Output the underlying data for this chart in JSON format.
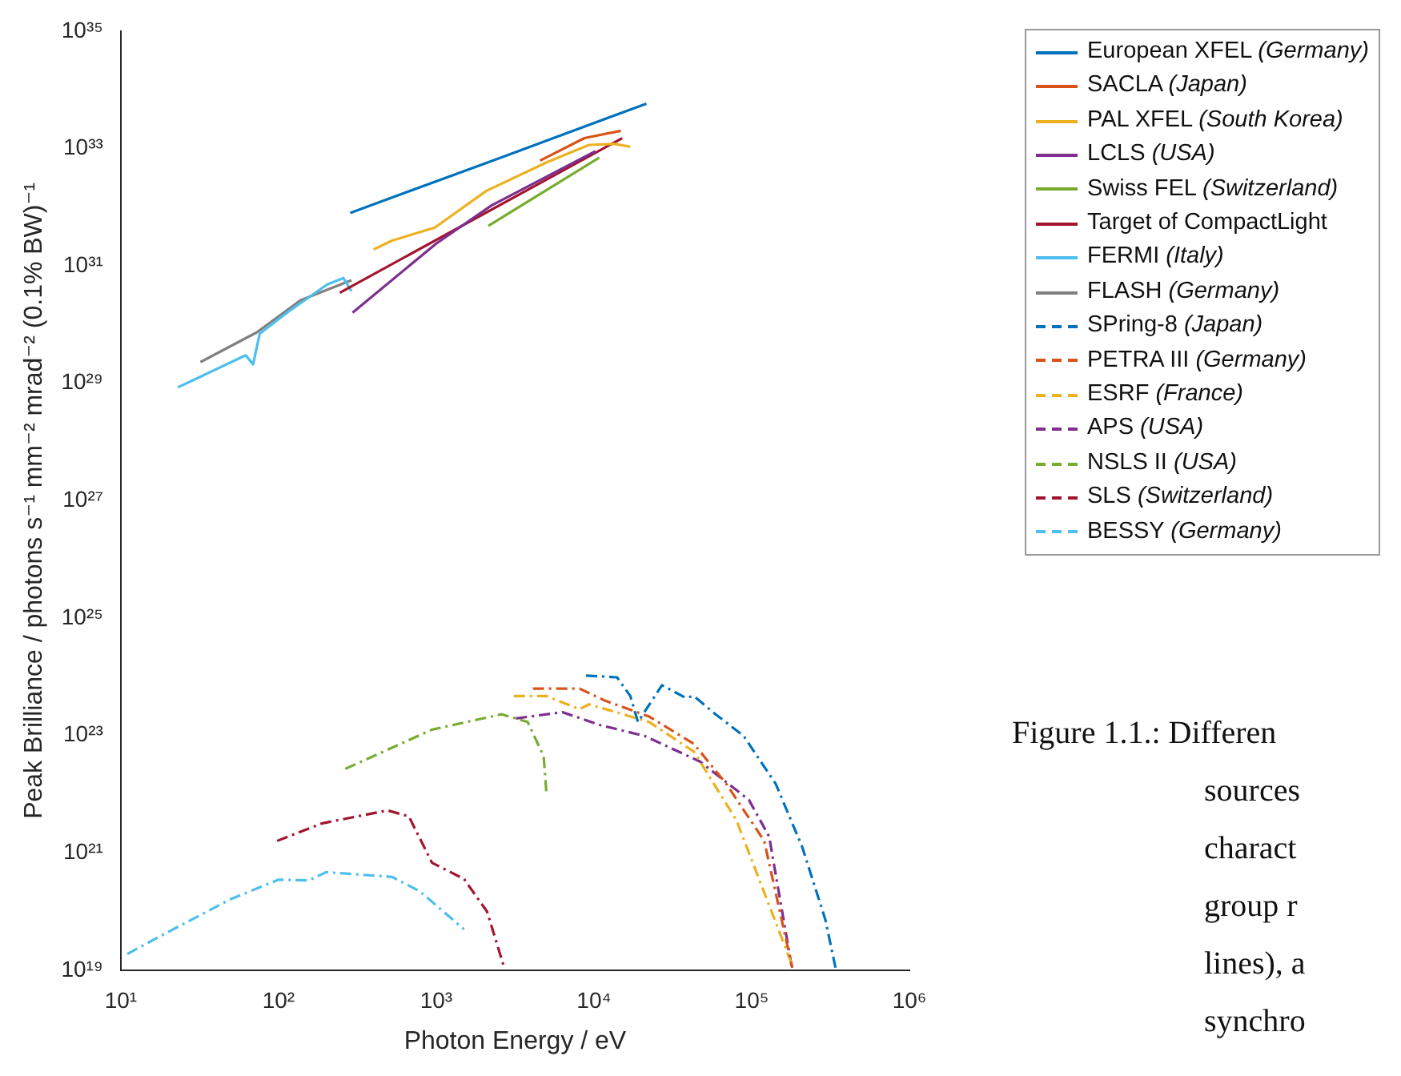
{
  "chart_data": {
    "type": "line",
    "xlabel": "Photon Energy / eV",
    "ylabel": "Peak Brilliance / photons s⁻¹ mm⁻² mrad⁻² (0.1% BW)⁻¹",
    "log": "xy",
    "grid": false,
    "legend": "top right",
    "marker": "none",
    "xlim": [
      10,
      1000000
    ],
    "xticks": [
      {
        "value": 10,
        "label": "10¹"
      },
      {
        "value": 100,
        "label": "10²"
      },
      {
        "value": 1000,
        "label": "10³"
      },
      {
        "value": 10000,
        "label": "10⁴"
      },
      {
        "value": 100000,
        "label": "10⁵"
      },
      {
        "value": 1000000,
        "label": "10⁶"
      }
    ],
    "ylim": [
      1e+19,
      1e+35
    ],
    "yticks": [
      {
        "value": 1e+19,
        "label": "10¹⁹"
      },
      {
        "value": 1e+21,
        "label": "10²¹"
      },
      {
        "value": 1e+23,
        "label": "10²³"
      },
      {
        "value": 1e+25,
        "label": "10²⁵"
      },
      {
        "value": 1e+27,
        "label": "10²⁷"
      },
      {
        "value": 1e+29,
        "label": "10²⁹"
      },
      {
        "value": 1e+31,
        "label": "10³¹"
      },
      {
        "value": 1e+33,
        "label": "10³³"
      },
      {
        "value": 1e+35,
        "label": "10³⁵"
      }
    ],
    "series": [
      {
        "name": "European XFEL (Germany)",
        "color": "#0072bd",
        "line_style": "solid",
        "x": [
          285,
          2500,
          21500
        ],
        "values": [
          8e+31,
          6.8e+32,
          5.8e+33
        ]
      },
      {
        "name": "SACLA (Japan)",
        "color": "#d95319",
        "line_style": "solid",
        "x": [
          4550,
          8700,
          14800
        ],
        "values": [
          6.2e+32,
          1.5e+33,
          2e+33
        ]
      },
      {
        "name": "PAL XFEL (South Korea)",
        "color": "#edb120",
        "line_style": "solid",
        "x": [
          400,
          525,
          980,
          2080,
          5020,
          9300,
          13400,
          17000
        ],
        "values": [
          1.9e+31,
          2.7e+31,
          4.5e+31,
          1.9e+32,
          5.8e+32,
          1.15e+33,
          1.2e+33,
          1.07e+33
        ]
      },
      {
        "name": "LCLS (USA)",
        "color": "#7e2f8e",
        "line_style": "solid",
        "x": [
          295,
          1000,
          2240,
          10200
        ],
        "values": [
          1.6e+30,
          2.4e+31,
          1.07e+32,
          9e+32
        ]
      },
      {
        "name": "Swiss FEL (Switzerland)",
        "color": "#77ac30",
        "line_style": "solid",
        "x": [
          2140,
          10800
        ],
        "values": [
          4.8e+31,
          7e+32
        ]
      },
      {
        "name": "Target of CompactLight",
        "color": "#a2142f",
        "line_style": "solid",
        "x": [
          245,
          15100
        ],
        "values": [
          3.5e+30,
          1.5e+33
        ]
      },
      {
        "name": "FERMI (Italy)",
        "color": "#4dbeee",
        "line_style": "solid",
        "x": [
          23,
          62,
          69,
          76,
          117,
          203,
          258,
          290
        ],
        "values": [
          8.5e+28,
          3e+29,
          2.1e+29,
          7e+29,
          1.7e+30,
          4.8e+30,
          6.2e+30,
          3.7e+30
        ]
      },
      {
        "name": "FLASH (Germany)",
        "color": "#808080",
        "line_style": "solid",
        "x": [
          32,
          73,
          138,
          290
        ],
        "values": [
          2.3e+29,
          7.4e+29,
          2.6e+30,
          5.7e+30
        ]
      },
      {
        "name": "SPring-8 (Japan)",
        "color": "#0072bd",
        "line_style": "dashed",
        "x": [
          8900,
          14000,
          17000,
          19000,
          27000,
          38000,
          43000,
          59000,
          89000,
          142000,
          209000,
          293000,
          340000
        ],
        "values": [
          1.05e+24,
          9.8e+23,
          4.7e+23,
          1.7e+23,
          7.2e+23,
          4.4e+23,
          4.7e+23,
          2.3e+23,
          9.8e+22,
          1.5e+22,
          1.26e+21,
          7.3e+19,
          1.1e+19
        ]
      },
      {
        "name": "PETRA III (Germany)",
        "color": "#d95319",
        "line_style": "dashed",
        "x": [
          4100,
          8100,
          11800,
          22400,
          43000,
          69000,
          120000,
          181000
        ],
        "values": [
          6.3e+23,
          6.3e+23,
          3.9e+23,
          2.1e+23,
          7.2e+22,
          1.5e+22,
          1.6e+21,
          1.1e+19
        ]
      },
      {
        "name": "ESRF (France)",
        "color": "#edb120",
        "line_style": "dashed",
        "x": [
          3100,
          5000,
          8100,
          9300,
          22400,
          43000,
          80000,
          181000
        ],
        "values": [
          4.7e+23,
          4.7e+23,
          2.8e+23,
          3.4e+23,
          1.7e+23,
          5.3e+22,
          3.6e+21,
          1.2e+19
        ]
      },
      {
        "name": "APS (USA)",
        "color": "#7e2f8e",
        "line_style": "dashed",
        "x": [
          3200,
          6300,
          11000,
          21000,
          47000,
          96000,
          129000,
          181000
        ],
        "values": [
          1.95e+23,
          2.5e+23,
          1.5e+23,
          9.8e+22,
          3.6e+22,
          8e+21,
          1.9e+21,
          1e+19
        ]
      },
      {
        "name": "NSLS II (USA)",
        "color": "#77ac30",
        "line_style": "dashed",
        "x": [
          265,
          940,
          2600,
          3800,
          4800,
          5000
        ],
        "values": [
          2.7e+22,
          1.26e+23,
          2.3e+23,
          1.7e+23,
          4.4e+22,
          1e+22
        ]
      },
      {
        "name": "SLS (Switzerland)",
        "color": "#a2142f",
        "line_style": "dashed",
        "x": [
          98,
          190,
          490,
          670,
          940,
          1500,
          2100,
          2700
        ],
        "values": [
          1.6e+21,
          3.2e+21,
          5.3e+21,
          4.2e+21,
          6.8e+20,
          3.6e+20,
          1e+20,
          1.1e+19
        ]
      },
      {
        "name": "BESSY (Germany)",
        "color": "#4dbeee",
        "line_style": "dashed",
        "x": [
          11,
          19,
          49,
          100,
          156,
          200,
          525,
          790,
          1500
        ],
        "values": [
          1.9e+19,
          4.2e+19,
          1.6e+20,
          3.5e+20,
          3.4e+20,
          4.7e+20,
          3.9e+20,
          2.2e+20,
          5e+19
        ]
      }
    ],
    "annotations": [
      "Figure 1.1.: Differen",
      "sources",
      "charact",
      "group r",
      "lines), a",
      "synchro"
    ]
  }
}
